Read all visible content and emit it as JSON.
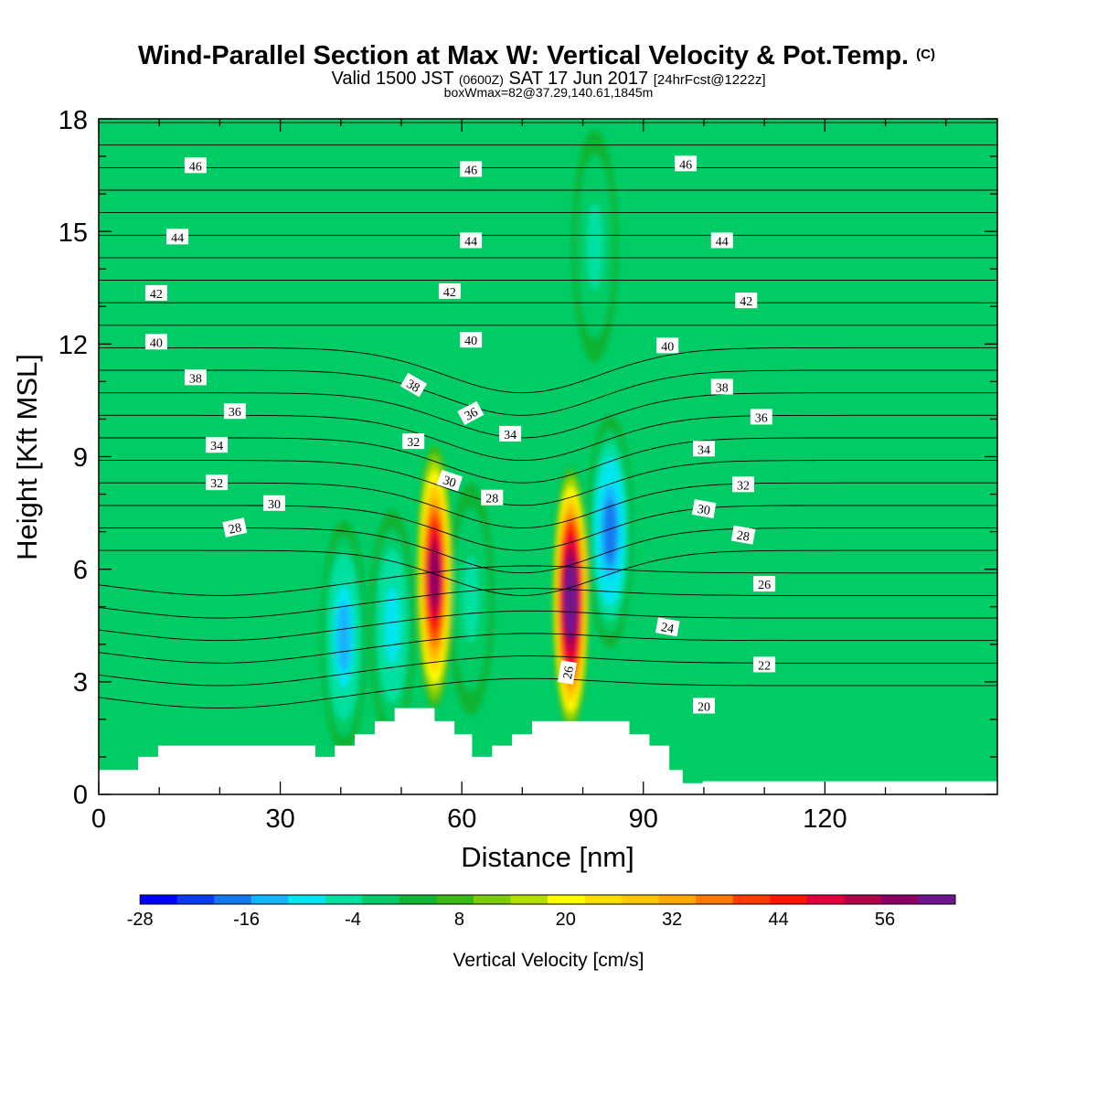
{
  "chart_data": {
    "type": "heatmap",
    "title": "Wind-Parallel Section at Max W: Vertical Velocity & Pot.Temp.",
    "title_mark": "(C)",
    "subtitle": {
      "part1": "Valid 1500 JST",
      "part2": "(0600Z)",
      "part3": "SAT 17 Jun 2017",
      "part4": "[24hrFcst@1222z]"
    },
    "subtitle2": "boxWmax=82@37.29,140.61,1845m",
    "xlabel": "Distance [nm]",
    "ylabel": "Height [Kft MSL]",
    "xlim": [
      0,
      148.5
    ],
    "ylim": [
      0,
      18
    ],
    "x_ticks": [
      "0",
      "30",
      "60",
      "90",
      "120"
    ],
    "y_ticks": [
      "0",
      "3",
      "6",
      "9",
      "12",
      "15",
      "18"
    ],
    "colorbar": {
      "label": "Vertical Velocity [cm/s]",
      "range": [
        -32,
        64
      ],
      "step": 4,
      "tick_labels": [
        "-28",
        "-16",
        "-4",
        "8",
        "20",
        "32",
        "44",
        "56"
      ],
      "colors": [
        "#0000ff",
        "#0a3cf0",
        "#1478f0",
        "#14b4ff",
        "#00e6f0",
        "#00e0a0",
        "#00cc66",
        "#11b433",
        "#3cbb14",
        "#7ccc0a",
        "#b4e000",
        "#ffff00",
        "#ffdf00",
        "#ffc800",
        "#ffaa00",
        "#ff7800",
        "#ff3c00",
        "#ff1400",
        "#e1003c",
        "#b4004b",
        "#8c0064",
        "#6e148c"
      ]
    },
    "features": {
      "upward_cores": [
        {
          "x": 55.5,
          "height": 5.8,
          "peak_w": 48
        },
        {
          "x": 78,
          "height": 5.2,
          "peak_w": 62
        }
      ],
      "downward_cores": [
        {
          "x": 40.5,
          "height": 4.2,
          "min_w": -18
        },
        {
          "x": 48.5,
          "height": 4.5,
          "min_w": -14
        },
        {
          "x": 61.5,
          "height": 5.2,
          "min_w": -10
        },
        {
          "x": 84.5,
          "height": 7.0,
          "min_w": -22
        },
        {
          "x": 82,
          "height": 14.6,
          "min_w": -10
        }
      ]
    },
    "terrain": {
      "x": [
        0,
        6.5,
        6.5,
        9.8,
        9.8,
        35.8,
        35.8,
        39,
        39,
        42.3,
        42.3,
        45.6,
        45.6,
        48.9,
        48.9,
        51.2,
        51.2,
        55.5,
        55.5,
        58.8,
        58.8,
        61.7,
        61.7,
        65,
        65,
        68.3,
        68.3,
        71.6,
        71.6,
        87.7,
        87.7,
        91,
        91,
        94.3,
        94.3,
        96.5,
        96.5,
        99.8,
        99.8,
        148.5
      ],
      "y": [
        0.65,
        0.65,
        1.0,
        1.0,
        1.3,
        1.3,
        1.0,
        1.0,
        1.3,
        1.3,
        1.6,
        1.6,
        1.95,
        1.95,
        2.3,
        2.3,
        2.3,
        2.3,
        1.95,
        1.95,
        1.6,
        1.6,
        1.0,
        1.0,
        1.3,
        1.3,
        1.6,
        1.6,
        1.95,
        1.95,
        1.6,
        1.6,
        1.3,
        1.3,
        0.65,
        0.65,
        0.3,
        0.3,
        0.35,
        0.35
      ]
    },
    "theta_labels": [
      {
        "text": "46",
        "x": 16,
        "y": 16.75,
        "rot": 0
      },
      {
        "text": "46",
        "x": 61.5,
        "y": 16.65,
        "rot": 0
      },
      {
        "text": "46",
        "x": 97,
        "y": 16.8,
        "rot": 0
      },
      {
        "text": "44",
        "x": 13,
        "y": 14.85,
        "rot": 0
      },
      {
        "text": "44",
        "x": 61.5,
        "y": 14.75,
        "rot": 0
      },
      {
        "text": "44",
        "x": 103,
        "y": 14.75,
        "rot": 0
      },
      {
        "text": "42",
        "x": 9.5,
        "y": 13.35,
        "rot": 0
      },
      {
        "text": "42",
        "x": 58,
        "y": 13.4,
        "rot": 0
      },
      {
        "text": "42",
        "x": 107,
        "y": 13.15,
        "rot": 0
      },
      {
        "text": "40",
        "x": 9.5,
        "y": 12.05,
        "rot": 0
      },
      {
        "text": "40",
        "x": 61.5,
        "y": 12.1,
        "rot": 0
      },
      {
        "text": "40",
        "x": 94,
        "y": 11.95,
        "rot": 0
      },
      {
        "text": "38",
        "x": 16,
        "y": 11.1,
        "rot": 0
      },
      {
        "text": "38",
        "x": 52,
        "y": 10.9,
        "rot": 30
      },
      {
        "text": "38",
        "x": 103,
        "y": 10.85,
        "rot": 0
      },
      {
        "text": "36",
        "x": 22.5,
        "y": 10.2,
        "rot": 0
      },
      {
        "text": "36",
        "x": 61.5,
        "y": 10.15,
        "rot": -28
      },
      {
        "text": "36",
        "x": 109.5,
        "y": 10.05,
        "rot": 0
      },
      {
        "text": "34",
        "x": 19.5,
        "y": 9.3,
        "rot": 0
      },
      {
        "text": "34",
        "x": 68,
        "y": 9.6,
        "rot": 0
      },
      {
        "text": "34",
        "x": 100,
        "y": 9.2,
        "rot": 0
      },
      {
        "text": "32",
        "x": 19.5,
        "y": 8.3,
        "rot": 0
      },
      {
        "text": "32",
        "x": 52,
        "y": 9.4,
        "rot": 0
      },
      {
        "text": "32",
        "x": 106.5,
        "y": 8.25,
        "rot": 0
      },
      {
        "text": "30",
        "x": 29,
        "y": 7.75,
        "rot": 0
      },
      {
        "text": "30",
        "x": 58,
        "y": 8.35,
        "rot": 18
      },
      {
        "text": "30",
        "x": 100,
        "y": 7.6,
        "rot": 10
      },
      {
        "text": "28",
        "x": 22.5,
        "y": 7.1,
        "rot": -12
      },
      {
        "text": "28",
        "x": 65,
        "y": 7.9,
        "rot": 0
      },
      {
        "text": "28",
        "x": 106.5,
        "y": 6.9,
        "rot": 10
      },
      {
        "text": "26",
        "x": 110,
        "y": 5.6,
        "rot": 0
      },
      {
        "text": "26",
        "x": 77.5,
        "y": 3.25,
        "rot": -80
      },
      {
        "text": "24",
        "x": 94,
        "y": 4.45,
        "rot": 10
      },
      {
        "text": "22",
        "x": 110,
        "y": 3.45,
        "rot": 0
      },
      {
        "text": "20",
        "x": 100,
        "y": 2.35,
        "rot": 0
      }
    ]
  }
}
